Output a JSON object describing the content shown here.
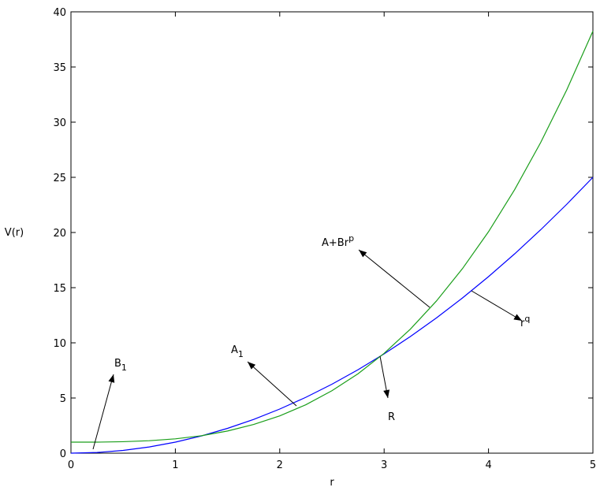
{
  "chart_data": {
    "type": "line",
    "xlabel": "r",
    "ylabel": "V(r)",
    "x": [
      0,
      0.25,
      0.5,
      0.75,
      1,
      1.25,
      1.5,
      1.75,
      2,
      2.25,
      2.5,
      2.75,
      3,
      3.25,
      3.5,
      3.75,
      4,
      4.25,
      4.5,
      4.75,
      5
    ],
    "series": [
      {
        "color": "#0000ff",
        "values": [
          0,
          0.0625,
          0.25,
          0.5625,
          1,
          1.5625,
          2.25,
          3.0625,
          4,
          5.0625,
          6.25,
          7.5625,
          9,
          10.5625,
          12.25,
          14.0625,
          16,
          18.0625,
          20.25,
          22.5625,
          25
        ]
      },
      {
        "color": "#1a9e1a",
        "values": [
          1,
          1.0,
          1.04,
          1.13,
          1.3,
          1.58,
          2.01,
          2.6,
          3.38,
          4.39,
          5.66,
          7.2,
          9.05,
          11.23,
          13.78,
          16.72,
          20.07,
          23.88,
          28.16,
          32.94,
          38.25
        ]
      }
    ],
    "xlim": [
      0,
      5
    ],
    "xticks": [
      0,
      1,
      2,
      3,
      4,
      5
    ],
    "ylim": [
      0,
      40
    ],
    "yticks": [
      0,
      5,
      10,
      15,
      20,
      25,
      30,
      35,
      40
    ],
    "annotations": [
      {
        "base": "B",
        "sub": "1"
      },
      {
        "base": "A",
        "sub": "1"
      },
      {
        "base": "A+Br",
        "sup": "p"
      },
      {
        "base": "r",
        "sup": "q"
      },
      {
        "base": "R"
      }
    ]
  }
}
